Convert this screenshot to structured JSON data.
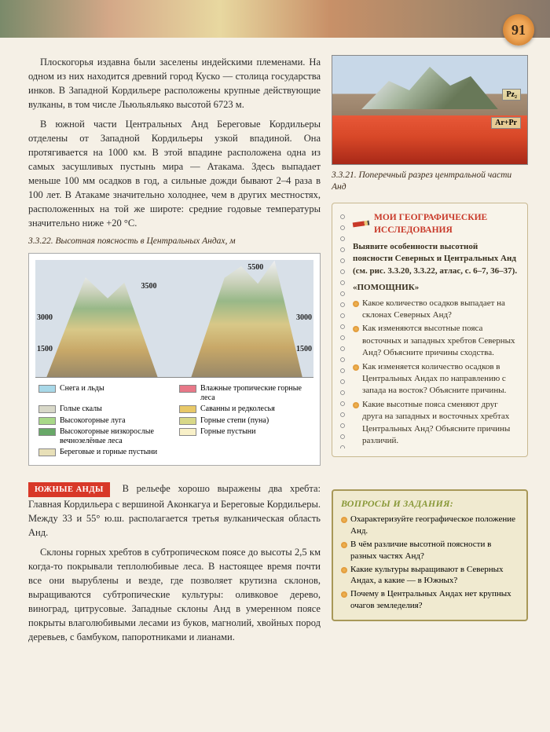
{
  "page_number": "91",
  "para1": "Плоскогорья издавна были заселены индейскими племенами. На одном из них находится древний город Куско — столица государства инков. В Западной Кордильере расположены крупные дей­ствующие вулканы, в том числе Льюльяльяко высотой 6723 м.",
  "para2": "В южной части Центральных Анд Береговые Кордильеры отделены от Западной Кордильеры узкой впадиной. Она протягивается на 1000 км. В этой впадине расположена одна из самых засушливых пустынь мира — Атакама. Здесь выпадает меньше 100 мм осадков в год, а силь­ные дожди бывают 2–4 раза в 100 лет. В Атакаме зна­чительно холоднее, чем в других местностях, располо­женных на той же широте: средние годовые температуры значительно ниже +20 °С.",
  "cross_section": {
    "caption": "3.3.21. Поперечный разрез центральной части Анд",
    "label1": "Pz₂",
    "label2": "Ar+Pr"
  },
  "altitude": {
    "caption": "3.3.22. Высотная поясность в Центральных Андах, м",
    "labels": {
      "l1500": "1500",
      "l3000": "3000",
      "l3500": "3500",
      "l5500": "5500",
      "r1500": "1500",
      "r3000": "3000"
    },
    "legend": [
      {
        "color": "#a8d8e8",
        "text": "Снега и льды"
      },
      {
        "color": "#e87888",
        "text": "Влажные тропические горные леса"
      },
      {
        "color": "#d8d8c8",
        "text": "Голые скалы"
      },
      {
        "color": "#e8c868",
        "text": "Саванны и редколесья"
      },
      {
        "color": "#a8d888",
        "text": "Высокогорные луга"
      },
      {
        "color": "#d8d888",
        "text": "Горные степи (пуна)"
      },
      {
        "color": "#68a868",
        "text": "Высокогорные низкорослые вечнозелёные леса"
      },
      {
        "color": "#f8f0c8",
        "text": "Горные пустыни"
      },
      {
        "color": "#e8e0b8",
        "text": "Береговые и горные пустыни"
      }
    ]
  },
  "notebook": {
    "title": "МОИ ГЕОГРАФИЧЕСКИЕ ИССЛЕДОВАНИЯ",
    "intro": "Выявите особенности высотной поясности Северных и Централь­ных Анд (см. рис. 3.3.20, 3.3.22, атлас, с. 6–7, 36–37).",
    "helper": "«ПОМОЩНИК»",
    "items": [
      "Какое количество осадков выпадает на склонах Северных Анд?",
      "Как изменяются высотные поя­са восточных и западных хребтов Северных Анд? Объясните причи­ны сходства.",
      "Как изменяется количество осадков в Центральных Андах по направлению с запада на восток? Объясните причины.",
      "Какие высотные пояса сменяют друг друга на западных и восточ­ных хребтах Центральных Анд? Объясните причины различий."
    ]
  },
  "section_tag": "ЮЖНЫЕ АНДЫ",
  "para3": "В рельефе хорошо выражены два хреб­та: Главная Кордильера с вершиной Аконкагуа и Береговые Кордильеры. Между 33 и 55° ю.ш. распола­гается третья вулканическая область Анд.",
  "para4": "Склоны горных хребтов в субтропическом поясе до высоты 2,5 км когда-то покрывали теплолюбивые леса. В настоящее время почти все они вырублены и везде, где позволяет крутизна склонов, выращиваются субтро­пические культуры: оливковое дерево, виноград, цитру­совые. Западные склоны Анд в умеренном поясе покры­ты влаголюбивыми лесами из буков, магнолий, хвойных пород деревьев, с бамбуком, папоротниками и лианами.",
  "questions": {
    "title": "ВОПРОСЫ И ЗАДАНИЯ:",
    "items": [
      "Охарактеризуйте географиче­ское положение Анд.",
      "В чём различие высотной пояс­ности в разных частях Анд?",
      "Какие культуры выращивают в Северных Андах, а какие — в Южных?",
      "Почему в Центральных Андах нет крупных очагов земледелия?"
    ]
  }
}
